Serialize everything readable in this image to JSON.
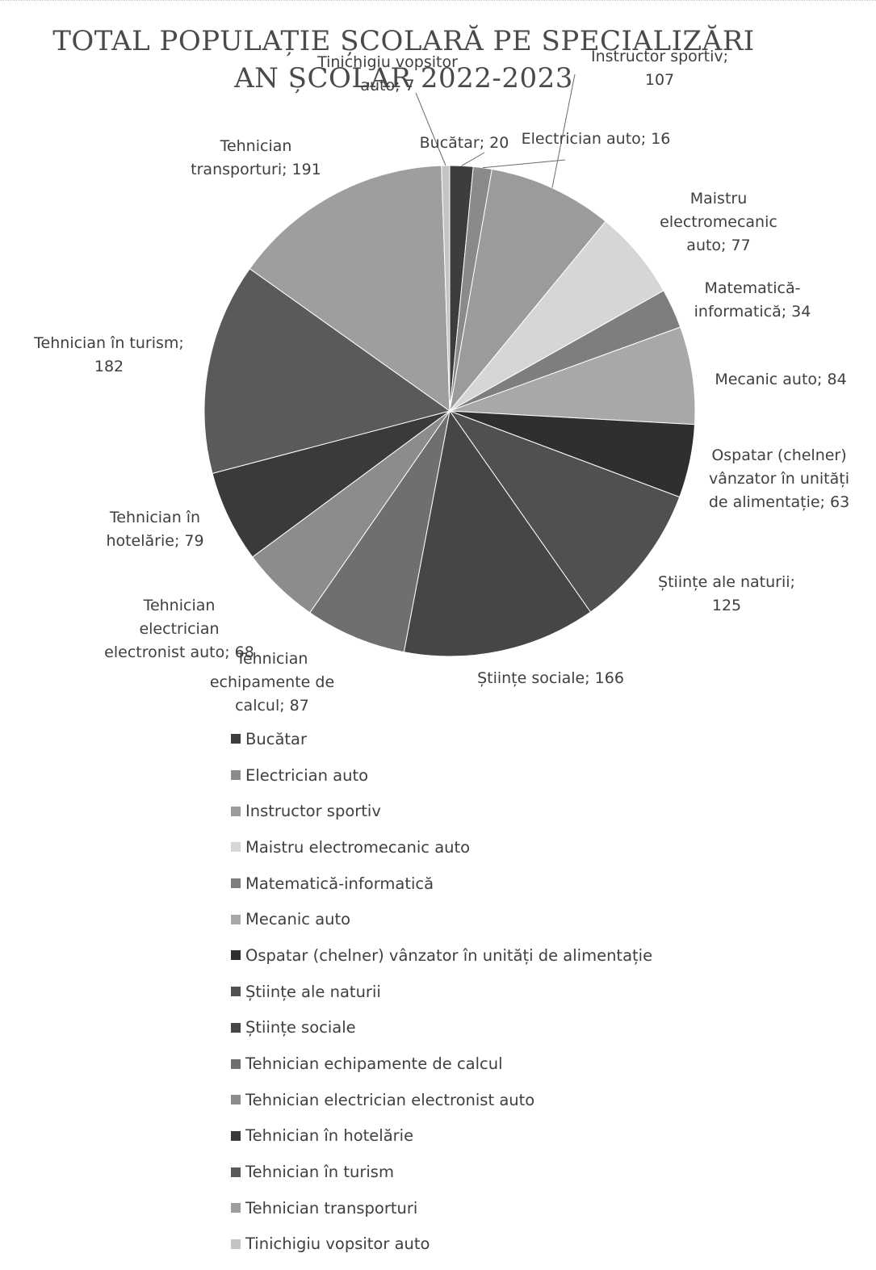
{
  "chart_data": {
    "type": "pie",
    "title_lines": [
      "TOTAL POPULAȚIE ȘCOLARĂ PE SPECIALIZĂRI",
      "AN ȘCOLAR 2022-2023"
    ],
    "legend_position": "bottom",
    "slices": [
      {
        "name": "Bucătar",
        "value": 20,
        "color": "#3d3d3d",
        "label_lines": [
          "Bucătar; 20"
        ]
      },
      {
        "name": "Electrician auto",
        "value": 16,
        "color": "#8a8a8a",
        "label_lines": [
          "Electrician auto; 16"
        ]
      },
      {
        "name": "Instructor sportiv",
        "value": 107,
        "color": "#9b9b9b",
        "label_lines": [
          "Instructor sportiv;",
          "107"
        ]
      },
      {
        "name": "Maistru electromecanic auto",
        "value": 77,
        "color": "#d6d6d6",
        "label_lines": [
          "Maistru",
          "electromecanic",
          "auto; 77"
        ]
      },
      {
        "name": "Matematică-informatică",
        "value": 34,
        "color": "#7e7e7e",
        "label_lines": [
          "Matematică-",
          "informatică; 34"
        ]
      },
      {
        "name": "Mecanic auto",
        "value": 84,
        "color": "#a8a8a8",
        "label_lines": [
          "Mecanic auto; 84"
        ]
      },
      {
        "name": "Ospatar (chelner) vânzator în unități de alimentație",
        "value": 63,
        "color": "#2f2f2f",
        "label_lines": [
          "Ospatar (chelner)",
          "vânzator în unități",
          "de alimentație; 63"
        ]
      },
      {
        "name": "Științe ale naturii",
        "value": 125,
        "color": "#505050",
        "label_lines": [
          "Științe ale naturii;",
          "125"
        ]
      },
      {
        "name": "Științe sociale",
        "value": 166,
        "color": "#464646",
        "label_lines": [
          "Științe sociale; 166"
        ]
      },
      {
        "name": "Tehnician echipamente de calcul",
        "value": 87,
        "color": "#6f6f6f",
        "label_lines": [
          "Tehnician",
          "echipamente de",
          "calcul; 87"
        ]
      },
      {
        "name": "Tehnician electrician electronist auto",
        "value": 68,
        "color": "#8c8c8c",
        "label_lines": [
          "Tehnician",
          "electrician",
          "electronist auto; 68"
        ]
      },
      {
        "name": "Tehnician în hotelărie",
        "value": 79,
        "color": "#3a3a3a",
        "label_lines": [
          "Tehnician în",
          "hotelărie; 79"
        ]
      },
      {
        "name": "Tehnician în turism",
        "value": 182,
        "color": "#5a5a5a",
        "label_lines": [
          "Tehnician în turism;",
          "182"
        ]
      },
      {
        "name": "Tehnician transporturi",
        "value": 191,
        "color": "#9e9e9e",
        "label_lines": [
          "Tehnician",
          "transporturi; 191"
        ]
      },
      {
        "name": "Tinichigiu vopsitor auto",
        "value": 7,
        "color": "#c4c4c4",
        "label_lines": [
          "Tinichigiu vopsitor",
          "auto; 7"
        ]
      }
    ]
  }
}
